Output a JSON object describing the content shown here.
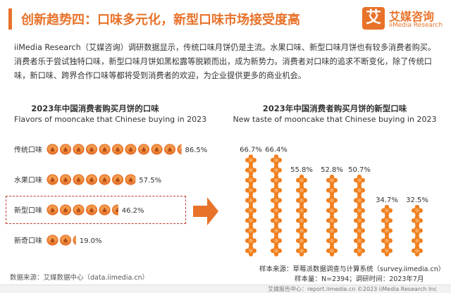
{
  "header": {
    "title": "创新趋势四：口味多元化，新型口味市场接受度高",
    "accent_color": "#e8722a"
  },
  "logo": {
    "mark": "艾",
    "name_cn": "艾媒咨询",
    "name_en": "iiMedia Research"
  },
  "intro_text": "iiMedia Research（艾媒咨询）调研数据显示，传统口味月饼仍是主流。水果口味、新型口味月饼也有较多消费者购买。消费者乐于尝试独特口味，新型口味月饼如黑松露等脱颖而出，成为新势力。消费者对口味的追求不断变化，除了传统口味，新口味、跨界合作口味等都将受到消费者的欢迎，为企业提供更多的商业机会。",
  "chart_data": [
    {
      "type": "bar",
      "orientation": "horizontal",
      "title": "2023年中国消费者购买月饼的口味",
      "subtitle": "Flavors of mooncake that Chinese buying in 2023",
      "unit": "%",
      "categories": [
        "传统口味",
        "水果口味",
        "新型口味",
        "新奇口味"
      ],
      "values": [
        86.5,
        57.5,
        46.2,
        19.0
      ],
      "labels": [
        "86.5%",
        "57.5%",
        "46.2%",
        "19.0%"
      ],
      "highlighted_category": "新型口味",
      "mark_color": "#e8722a"
    },
    {
      "type": "bar",
      "orientation": "vertical",
      "title": "2023年中国消费者购买月饼的新型口味",
      "subtitle": "New taste of mooncake that Chinese buying in 2023",
      "unit": "%",
      "categories": [
        "",
        "",
        "",
        "",
        "",
        "",
        ""
      ],
      "values": [
        66.7,
        66.4,
        55.8,
        52.8,
        50.7,
        34.7,
        32.5
      ],
      "labels": [
        "66.7%",
        "66.4%",
        "55.8%",
        "52.8%",
        "50.7%",
        "34.7%",
        "32.5%"
      ],
      "mark_color": "#f07f1e"
    }
  ],
  "source": "数据来源：艾媒数据中心（data.iimedia.cn）",
  "sample_source": "样本来源：草莓派数据调查与计算系统（survey.iimedia.cn）",
  "sample_meta": "样本量：N=2394；调研时间：2023年7月",
  "footer": "艾媒报告中心：report.iimedia.cn  ©2023  iiMedia Research  Inc"
}
